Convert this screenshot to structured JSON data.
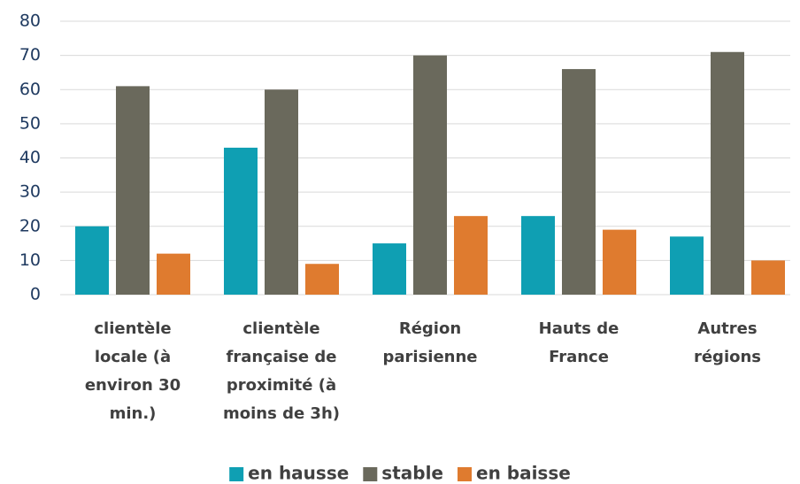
{
  "chart_data": {
    "type": "bar",
    "categories": [
      [
        "clientèle",
        "locale (à",
        "environ 30",
        "min.)"
      ],
      [
        "clientèle",
        "française de",
        "proximité (à",
        "moins de 3h)"
      ],
      [
        "Région",
        "parisienne"
      ],
      [
        "Hauts de",
        "France"
      ],
      [
        "Autres",
        "régions"
      ]
    ],
    "series": [
      {
        "name": "en hausse",
        "color": "#0f9fb3",
        "values": [
          20,
          43,
          15,
          23,
          17
        ]
      },
      {
        "name": "stable",
        "color": "#6a695c",
        "values": [
          61,
          60,
          70,
          66,
          71
        ]
      },
      {
        "name": "en baisse",
        "color": "#df7b2f",
        "values": [
          12,
          9,
          23,
          19,
          10
        ]
      }
    ],
    "ylim": [
      0,
      80
    ],
    "yticks": [
      0,
      10,
      20,
      30,
      40,
      50,
      60,
      70,
      80
    ],
    "grid": true,
    "legend": "bottom"
  }
}
